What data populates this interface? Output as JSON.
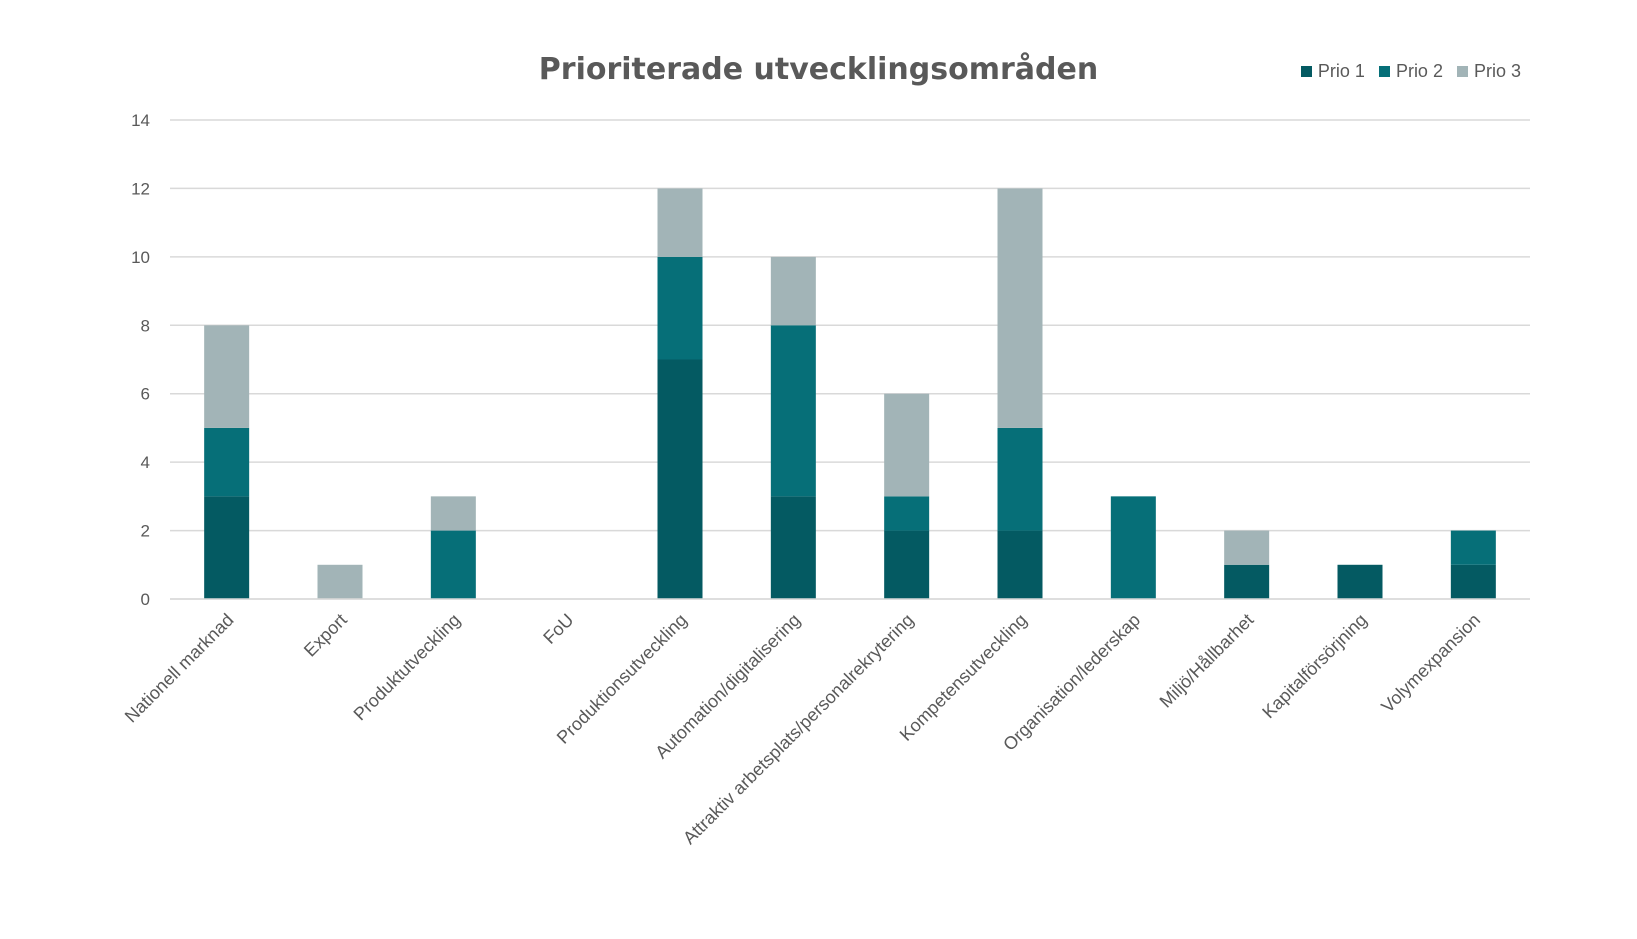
{
  "chart_data": {
    "type": "bar",
    "stacked": true,
    "title": "Prioriterade utvecklingsområden",
    "xlabel": "",
    "ylabel": "",
    "ylim": [
      0,
      14
    ],
    "yticks": [
      0,
      2,
      4,
      6,
      8,
      10,
      12,
      14
    ],
    "grid": true,
    "legend_position": "top-right",
    "categories": [
      "Nationell marknad",
      "Export",
      "Produktutveckling",
      "FoU",
      "Produktionsutveckling",
      "Automation/digitalisering",
      "Attraktiv arbetsplats/personalrekrytering",
      "Kompetensutveckling",
      "Organisation/lederskap",
      "Miljö/Hållbarhet",
      "Kapitalförsörjning",
      "Volymexpansion"
    ],
    "series": [
      {
        "name": "Prio 1",
        "color": "#045a62",
        "values": [
          3,
          0,
          0,
          0,
          7,
          3,
          2,
          2,
          0,
          1,
          1,
          1
        ]
      },
      {
        "name": "Prio 2",
        "color": "#066f78",
        "values": [
          2,
          0,
          2,
          0,
          3,
          5,
          1,
          3,
          3,
          0,
          0,
          1
        ]
      },
      {
        "name": "Prio 3",
        "color": "#a2b4b7",
        "values": [
          3,
          1,
          1,
          0,
          2,
          2,
          3,
          7,
          0,
          1,
          0,
          0
        ]
      }
    ]
  }
}
